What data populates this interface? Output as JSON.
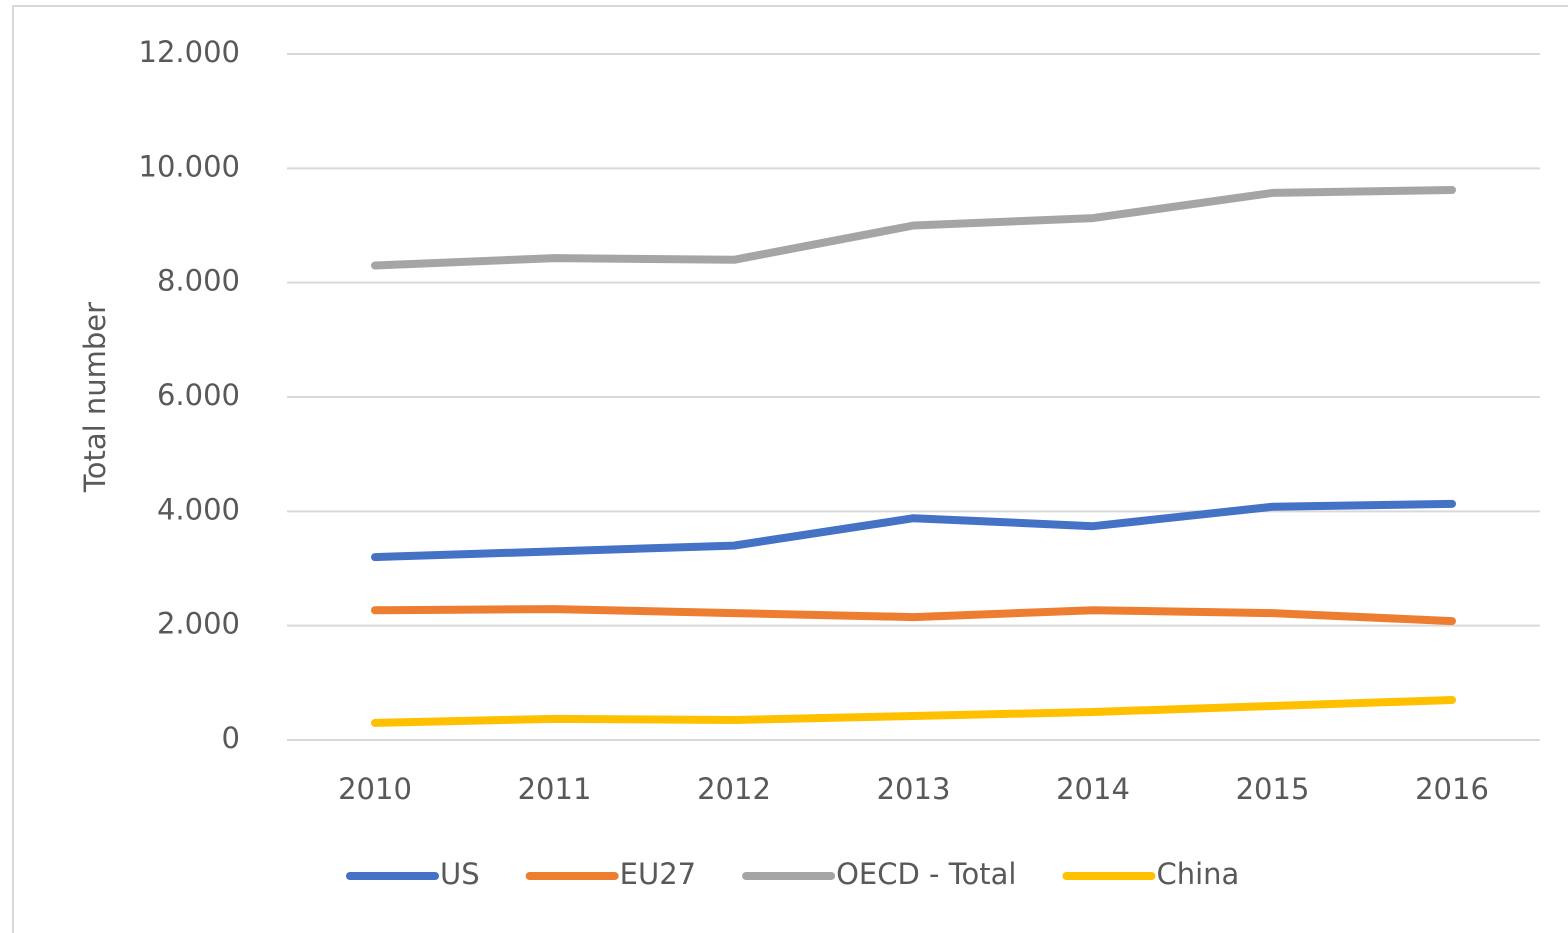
{
  "chart_data": {
    "type": "line",
    "y_label": "Total number",
    "categories": [
      "2010",
      "2011",
      "2012",
      "2013",
      "2014",
      "2015",
      "2016"
    ],
    "series": [
      {
        "name": "US",
        "color": "#4472c4",
        "values": [
          3200,
          3300,
          3400,
          3880,
          3740,
          4080,
          4130
        ]
      },
      {
        "name": "EU27",
        "color": "#ed7d31",
        "values": [
          2270,
          2290,
          2220,
          2150,
          2270,
          2220,
          2080
        ]
      },
      {
        "name": "OECD - Total",
        "color": "#a5a5a5",
        "values": [
          8300,
          8430,
          8400,
          9000,
          9130,
          9570,
          9620
        ]
      },
      {
        "name": "China",
        "color": "#ffc000",
        "values": [
          300,
          370,
          350,
          420,
          490,
          595,
          700
        ]
      }
    ],
    "ylim": [
      0,
      12000
    ],
    "yticks": [
      0,
      {
        "value": 2000,
        "label": "2.000"
      },
      {
        "value": 4000,
        "label": "4.000"
      },
      {
        "value": 6000,
        "label": "6.000"
      },
      {
        "value": 8000,
        "label": "8.000"
      },
      {
        "value": 10000,
        "label": "10.000"
      },
      {
        "value": 12000,
        "label": "12.000"
      }
    ],
    "grid": true,
    "legend": "bottom"
  }
}
